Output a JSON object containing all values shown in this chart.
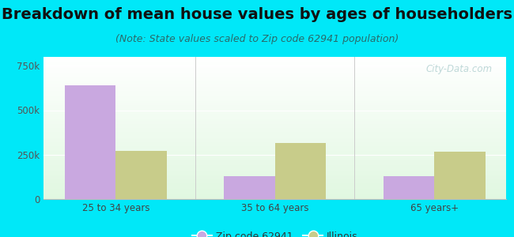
{
  "title": "Breakdown of mean house values by ages of householders",
  "subtitle": "(Note: State values scaled to Zip code 62941 population)",
  "categories": [
    "25 to 34 years",
    "35 to 64 years",
    "65 years+"
  ],
  "zip_values": [
    640000,
    130000,
    130000
  ],
  "state_values": [
    270000,
    315000,
    265000
  ],
  "zip_color": "#c9a8e0",
  "state_color": "#c8cc8a",
  "background_color": "#00e8f8",
  "ylim": [
    0,
    800000
  ],
  "yticks": [
    0,
    250000,
    500000,
    750000
  ],
  "ytick_labels": [
    "0",
    "250k",
    "500k",
    "750k"
  ],
  "title_fontsize": 14,
  "subtitle_fontsize": 9,
  "legend_labels": [
    "Zip code 62941",
    "Illinois"
  ],
  "watermark": "City-Data.com",
  "bar_width": 0.32
}
